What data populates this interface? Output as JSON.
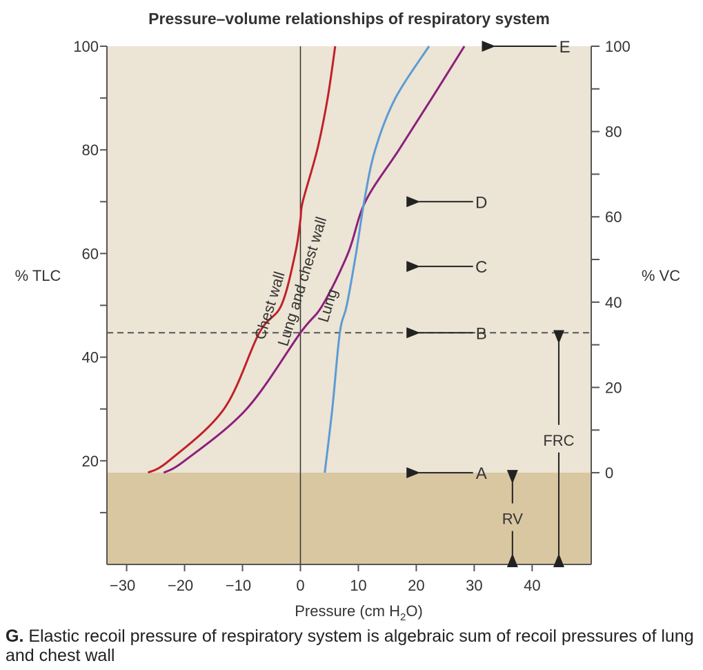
{
  "chart_data": {
    "type": "line",
    "title": "Pressure–volume relationships of respiratory system",
    "xlabel": "Pressure (cm H₂O)",
    "ylabel": "% TLC",
    "y2label": "% VC",
    "xlim": [
      -33.4,
      50.2
    ],
    "ylim": [
      0,
      100
    ],
    "xticks": [
      -30,
      -20,
      -10,
      0,
      10,
      20,
      30,
      40
    ],
    "yticks_labeled": [
      20,
      40,
      60,
      80,
      100
    ],
    "yticks_minor": [
      10,
      30,
      50,
      70,
      90
    ],
    "y2ticks_labeled": [
      0,
      20,
      40,
      60,
      80,
      100
    ],
    "y2ticks_minor": [
      10,
      30,
      50,
      70,
      90
    ],
    "vc_zero_tlc": 17.7,
    "grid": false,
    "series": [
      {
        "name": "Chest wall",
        "color": "#c0202a",
        "points": [
          [
            -26.3,
            17.7
          ],
          [
            -22.7,
            20
          ],
          [
            -13.2,
            30
          ],
          [
            -7.1,
            44.7
          ],
          [
            -3.3,
            50
          ],
          [
            -0.9,
            60
          ],
          [
            0,
            66.5
          ],
          [
            0.4,
            70
          ],
          [
            2.9,
            80
          ],
          [
            4.7,
            90
          ],
          [
            6.0,
            100
          ]
        ]
      },
      {
        "name": "Lung and chest wall",
        "color": "#8b1f7d",
        "points": [
          [
            -23.6,
            17.7
          ],
          [
            -20,
            20
          ],
          [
            -9.3,
            30
          ],
          [
            0,
            44.7
          ],
          [
            3.8,
            50
          ],
          [
            8.2,
            60
          ],
          [
            11.2,
            70
          ],
          [
            17,
            80
          ],
          [
            22.7,
            90
          ],
          [
            28.3,
            100
          ]
        ]
      },
      {
        "name": "Lung",
        "color": "#5b9bd5",
        "points": [
          [
            4.2,
            17.7
          ],
          [
            5.5,
            30
          ],
          [
            6.8,
            44.7
          ],
          [
            8,
            50
          ],
          [
            9.6,
            60
          ],
          [
            11,
            70
          ],
          [
            12.9,
            80
          ],
          [
            16.4,
            90
          ],
          [
            22.2,
            100
          ]
        ]
      }
    ],
    "reference_lines": {
      "frc_dashed_tlc": 44.7,
      "zero_pressure": 0
    },
    "volume_markers": [
      {
        "label": "A",
        "tlc": 17.7
      },
      {
        "label": "B",
        "tlc": 44.7
      },
      {
        "label": "C",
        "tlc": 57.5
      },
      {
        "label": "D",
        "tlc": 70
      },
      {
        "label": "E",
        "tlc": 100
      }
    ],
    "spans": [
      {
        "label": "RV",
        "from": 0,
        "to": 17.7,
        "x": 36.6
      },
      {
        "label": "FRC",
        "from": 0,
        "to": 44.7,
        "x": 44.6
      }
    ],
    "colors": {
      "plot_bg": "#ece4d4",
      "rv_zone": "#d9c7a2",
      "axis": "#555555"
    }
  },
  "caption": {
    "letter": "G.",
    "text": "Elastic recoil pressure of respiratory system is algebraic sum of recoil pressures of lung and chest wall"
  }
}
